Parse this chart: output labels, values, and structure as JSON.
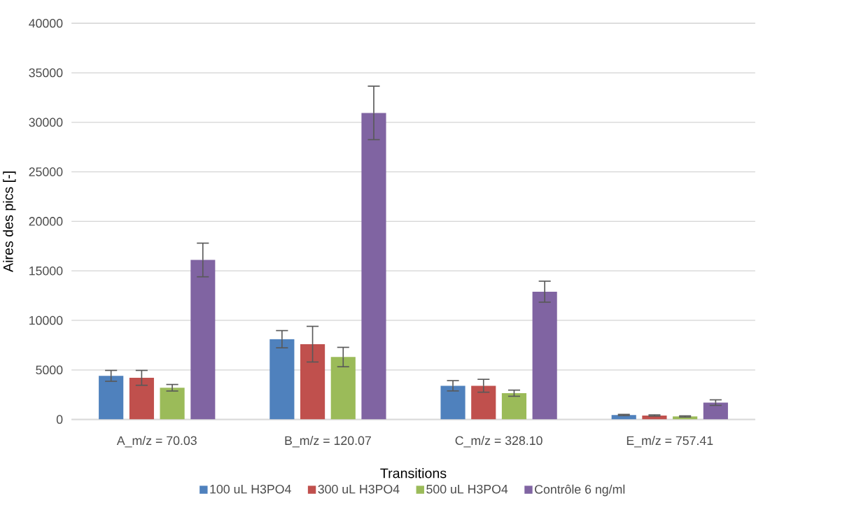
{
  "chart_data": {
    "type": "bar",
    "xlabel": "Transitions",
    "ylabel": "Aires des pics [-]",
    "categories": [
      "A_m/z = 70.03",
      "B_m/z = 120.07",
      "C_m/z = 328.10",
      "E_m/z = 757.41"
    ],
    "series": [
      {
        "name": "100 uL H3PO4",
        "color": "#4f81bd",
        "values": [
          4400,
          8100,
          3400,
          450
        ],
        "errors": [
          550,
          870,
          520,
          60
        ]
      },
      {
        "name": "300 uL H3PO4",
        "color": "#c0504d",
        "values": [
          4200,
          7600,
          3400,
          400
        ],
        "errors": [
          750,
          1800,
          650,
          60
        ]
      },
      {
        "name": "500 uL H3PO4",
        "color": "#9bbb59",
        "values": [
          3200,
          6300,
          2650,
          300
        ],
        "errors": [
          330,
          980,
          310,
          60
        ]
      },
      {
        "name": "Contrôle 6 ng/ml",
        "color": "#8064a2",
        "values": [
          16100,
          30950,
          12900,
          1700
        ],
        "errors": [
          1700,
          2700,
          1060,
          280
        ]
      }
    ],
    "ylim": [
      0,
      40000
    ],
    "yticks": [
      0,
      5000,
      10000,
      15000,
      20000,
      25000,
      30000,
      35000,
      40000
    ],
    "grid": "y",
    "legend": "bottom"
  }
}
